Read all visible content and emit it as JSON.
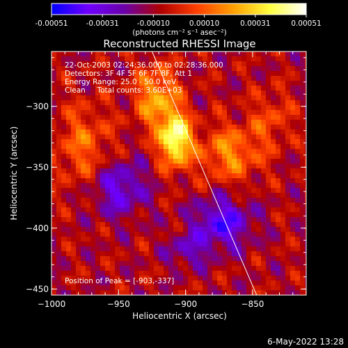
{
  "chart_data": {
    "type": "heatmap",
    "title": "Reconstructed RHESSI Image",
    "colorbar": {
      "ticks": [
        "-0.00051",
        "-0.00031",
        "-0.00010",
        "0.00010",
        "0.00031",
        "0.00051"
      ],
      "range": [
        -0.00051,
        0.00051
      ],
      "unit_label": "(photons cm⁻² s⁻¹ asec⁻²)",
      "colormap": [
        "#0000ff",
        "#7000ff",
        "#6a00a8",
        "#b00000",
        "#ff4000",
        "#ffa000",
        "#ffff40",
        "#ffffff"
      ]
    },
    "xlabel": "Heliocentric X (arcsec)",
    "ylabel": "Heliocentric Y (arcsec)",
    "xlim": [
      -1000,
      -810
    ],
    "ylim": [
      -455,
      -255
    ],
    "x_ticks": [
      {
        "value": -1000,
        "label": "−1000"
      },
      {
        "value": -950,
        "label": "−950"
      },
      {
        "value": -900,
        "label": "−900"
      },
      {
        "value": -850,
        "label": "−850"
      }
    ],
    "y_ticks": [
      {
        "value": -300,
        "label": "−300"
      },
      {
        "value": -350,
        "label": "−350"
      },
      {
        "value": -400,
        "label": "−400"
      },
      {
        "value": -450,
        "label": "−450"
      }
    ],
    "limb_line": {
      "x": [
        -925,
        -847
      ],
      "y": [
        -255,
        -455
      ],
      "color": "#ffffff"
    },
    "peak": {
      "x": -903,
      "y": -337
    },
    "annotations": [
      "22-Oct-2003 02:24:36.000 to 02:28:36.000",
      "Detectors: 3F 4F 5F 6F 7F 8F, Att 1",
      "Energy Range: 25.0 - 50.0 keV",
      "Clean     Total counts: 3.60E+03"
    ],
    "peak_label": "Position of Peak = [-903,-337]"
  },
  "footer": {
    "timestamp": "6-May-2022 13:28"
  }
}
